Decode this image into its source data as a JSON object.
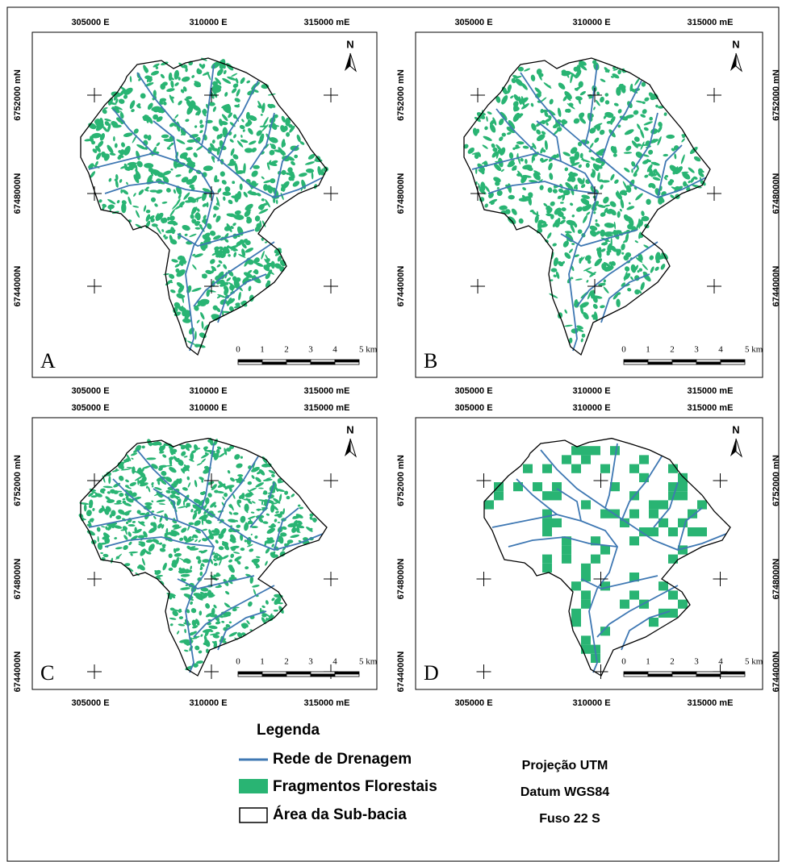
{
  "panels": [
    {
      "letter": "A",
      "north": "N",
      "top_labels": [
        "305000 E",
        "310000 E",
        "315000 mE"
      ],
      "bottom_labels": [
        "305000 E",
        "310000 E",
        "315000 mE"
      ],
      "left_labels": [
        "6752000 mN",
        "6748000N",
        "6744000N"
      ],
      "scale_labels": [
        "0",
        "1",
        "2",
        "3",
        "4",
        "5 km"
      ]
    },
    {
      "letter": "B",
      "north": "N",
      "top_labels": [
        "305000 E",
        "310000 E",
        "315000 mE"
      ],
      "bottom_labels": [
        "305000 E",
        "310000 E",
        "315000 mE"
      ],
      "left_labels": [
        "6752000 mN",
        "6748000N",
        "6744000N"
      ],
      "right_labels": [
        "6752000 mN",
        "6748000N",
        "6744000N"
      ],
      "scale_labels": [
        "0",
        "1",
        "2",
        "3",
        "4",
        "5 km"
      ]
    },
    {
      "letter": "C",
      "north": "N",
      "top_labels": [
        "305000 E",
        "310000 E",
        "315000 mE"
      ],
      "bottom_labels": [
        "305000 E",
        "310000 E",
        "315000 mE"
      ],
      "left_labels": [
        "6752000 mN",
        "6748000N",
        "6744000N"
      ],
      "scale_labels": [
        "0",
        "1",
        "2",
        "3",
        "4",
        "5 km"
      ]
    },
    {
      "letter": "D",
      "north": "N",
      "top_labels": [
        "305000 E",
        "310000 E",
        "315000 mE"
      ],
      "bottom_labels": [
        "305000 E",
        "310000 E",
        "315000 mE"
      ],
      "left_labels": [
        "6752000 mN",
        "6748000N",
        "6744000N"
      ],
      "right_labels": [
        "6752000 mN",
        "6748000N",
        "6744000N"
      ],
      "scale_labels": [
        "0",
        "1",
        "2",
        "3",
        "4",
        "5 km"
      ]
    }
  ],
  "legend": {
    "title": "Legenda",
    "items": [
      "Rede de Drenagem",
      "Fragmentos Florestais",
      "Área da Sub-bacia"
    ]
  },
  "projection": [
    "Projeção UTM",
    "Datum WGS84",
    "Fuso 22 S"
  ]
}
